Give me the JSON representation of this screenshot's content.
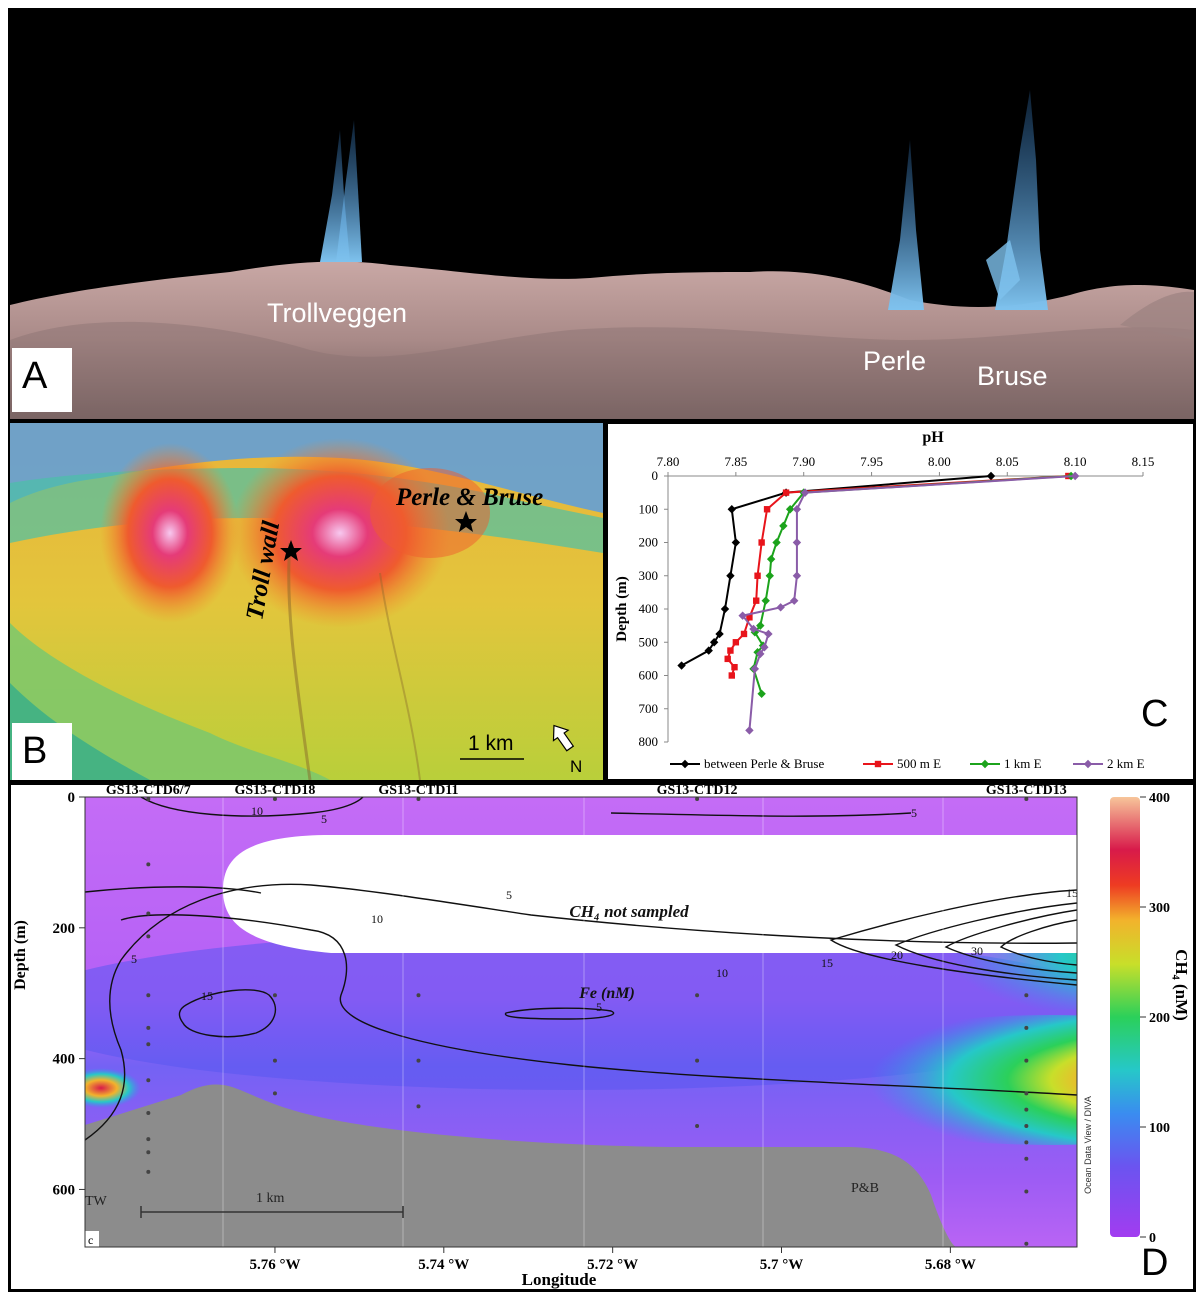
{
  "panel_a": {
    "letter": "A",
    "labels": [
      "Trollveggen",
      "Perle",
      "Bruse"
    ]
  },
  "panel_b": {
    "letter": "B",
    "labels": [
      "Perle & Bruse",
      "Troll wall"
    ],
    "scale_label": "1 km",
    "north_label": "N"
  },
  "panel_d": {
    "letter": "D",
    "subpanel_tag": "c",
    "region_labels": [
      "TW",
      "P&B"
    ],
    "scale_label": "1 km",
    "watermark": "Ocean Data View / DIVA",
    "not_sampled_label": "CH₄ not sampled",
    "fe_label": "Fe (nM)",
    "colors": {
      "seafloor": "#8c8c8c",
      "not_sampled": "#ffffff"
    }
  },
  "chart_data": [
    {
      "panel": "C",
      "type": "line",
      "xlabel": "pH",
      "ylabel": "Depth (m)",
      "xlim": [
        7.8,
        8.15
      ],
      "ylim": [
        800,
        0
      ],
      "x_ticks": [
        "7.80",
        "7.85",
        "7.90",
        "7.95",
        "8.00",
        "8.05",
        "8.10",
        "8.15"
      ],
      "y_ticks": [
        "0",
        "100",
        "200",
        "300",
        "400",
        "500",
        "600",
        "700",
        "800"
      ],
      "legend_position": "bottom",
      "series": [
        {
          "name": "between Perle & Bruse",
          "color": "#000000",
          "marker": "diamond",
          "points": [
            [
              8.038,
              0
            ],
            [
              7.887,
              50
            ],
            [
              7.847,
              100
            ],
            [
              7.85,
              200
            ],
            [
              7.846,
              300
            ],
            [
              7.842,
              400
            ],
            [
              7.838,
              475
            ],
            [
              7.834,
              500
            ],
            [
              7.83,
              525
            ],
            [
              7.81,
              570
            ]
          ]
        },
        {
          "name": "500 m E",
          "color": "#e8141b",
          "marker": "square",
          "points": [
            [
              8.095,
              0
            ],
            [
              7.887,
              50
            ],
            [
              7.873,
              100
            ],
            [
              7.869,
              200
            ],
            [
              7.866,
              300
            ],
            [
              7.865,
              375
            ],
            [
              7.86,
              425
            ],
            [
              7.856,
              475
            ],
            [
              7.85,
              500
            ],
            [
              7.846,
              525
            ],
            [
              7.844,
              550
            ],
            [
              7.849,
              575
            ],
            [
              7.847,
              600
            ]
          ]
        },
        {
          "name": "1 km E",
          "color": "#1ca31c",
          "marker": "diamond",
          "points": [
            [
              8.097,
              0
            ],
            [
              7.9,
              50
            ],
            [
              7.89,
              100
            ],
            [
              7.885,
              150
            ],
            [
              7.88,
              200
            ],
            [
              7.876,
              250
            ],
            [
              7.875,
              300
            ],
            [
              7.872,
              375
            ],
            [
              7.868,
              450
            ],
            [
              7.864,
              470
            ],
            [
              7.87,
              510
            ],
            [
              7.866,
              530
            ],
            [
              7.863,
              580
            ],
            [
              7.869,
              655
            ]
          ]
        },
        {
          "name": "2 km E",
          "color": "#8a5ca8",
          "marker": "diamond",
          "points": [
            [
              8.1,
              0
            ],
            [
              7.901,
              50
            ],
            [
              7.895,
              100
            ],
            [
              7.895,
              200
            ],
            [
              7.895,
              300
            ],
            [
              7.893,
              375
            ],
            [
              7.883,
              395
            ],
            [
              7.855,
              420
            ],
            [
              7.863,
              460
            ],
            [
              7.874,
              475
            ],
            [
              7.871,
              515
            ],
            [
              7.868,
              535
            ],
            [
              7.864,
              580
            ],
            [
              7.86,
              765
            ]
          ]
        }
      ]
    },
    {
      "panel": "D",
      "type": "heatmap",
      "xlabel": "Longitude",
      "ylabel": "Depth (m)",
      "x_ticks": [
        "5.76 °W",
        "5.74 °W",
        "5.72 °W",
        "5.7 °W",
        "5.68 °W"
      ],
      "y_ticks": [
        "0",
        "200",
        "400",
        "600"
      ],
      "colorbar_label": "CH₄ (nM)",
      "colorbar_ticks": [
        "0",
        "100",
        "200",
        "300",
        "400"
      ],
      "color_range": [
        0,
        400
      ],
      "stations": [
        {
          "name": "GS13-CTD6/7",
          "lon": 5.775,
          "depths": [
            0,
            100,
            175,
            210,
            300,
            350,
            375,
            430,
            480,
            520,
            540,
            570
          ]
        },
        {
          "name": "GS13-CTD18",
          "lon": 5.76,
          "depths": [
            0,
            300,
            400,
            450
          ]
        },
        {
          "name": "GS13-CTD11",
          "lon": 5.743,
          "depths": [
            0,
            300,
            400,
            470
          ]
        },
        {
          "name": "GS13-CTD12",
          "lon": 5.71,
          "depths": [
            0,
            300,
            400,
            500
          ]
        },
        {
          "name": "GS13-CTD13",
          "lon": 5.671,
          "depths": [
            0,
            300,
            350,
            400,
            450,
            475,
            500,
            525,
            550,
            600,
            680
          ]
        }
      ],
      "fe_contour_labels": [
        "10",
        "5",
        "5",
        "10",
        "15",
        "5",
        "5",
        "10",
        "15",
        "20",
        "30",
        "15",
        "5"
      ],
      "ch4_max_region": {
        "lon": [
          5.68,
          5.67
        ],
        "depth": [
          470,
          580
        ],
        "value": 400
      }
    }
  ]
}
